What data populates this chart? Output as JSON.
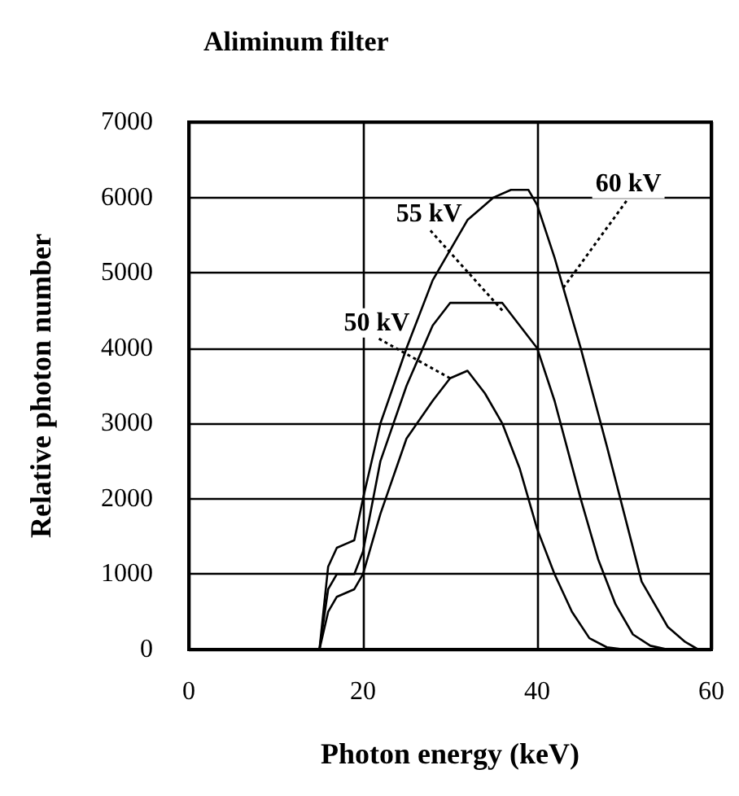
{
  "chart_data": {
    "type": "line",
    "title": "Aliminum filter",
    "xlabel": "Photon energy (keV)",
    "ylabel": "Relative photon number",
    "xlim": [
      0,
      60
    ],
    "xticks": [
      0,
      20,
      40,
      60
    ],
    "ylim": [
      0,
      7000
    ],
    "yticks": [
      0,
      1000,
      2000,
      3000,
      4000,
      5000,
      6000,
      7000
    ],
    "grid": true,
    "marker": "none",
    "line_style": "solid",
    "series": [
      {
        "color": "#000000",
        "x": [
          15,
          16,
          17,
          18,
          19,
          20,
          22,
          25,
          28,
          30,
          32,
          35,
          37,
          39,
          40,
          42,
          45,
          48,
          50,
          52,
          55,
          57,
          58.5
        ],
        "values": [
          0,
          1100,
          1350,
          1400,
          1450,
          2000,
          3000,
          4000,
          4900,
          5300,
          5700,
          6000,
          6100,
          6100,
          5900,
          5200,
          4000,
          2700,
          1800,
          900,
          300,
          100,
          0
        ]
      },
      {
        "color": "#000000",
        "x": [
          15,
          16,
          17,
          19,
          20,
          22,
          25,
          28,
          30,
          33,
          36,
          38,
          40,
          42,
          45,
          47,
          49,
          51,
          53,
          55
        ],
        "values": [
          0,
          800,
          1000,
          1000,
          1300,
          2500,
          3500,
          4300,
          4600,
          4600,
          4600,
          4300,
          4000,
          3300,
          2000,
          1200,
          600,
          200,
          50,
          0
        ]
      },
      {
        "color": "#000000",
        "x": [
          15,
          16,
          17,
          19,
          20,
          22,
          25,
          28,
          30,
          32,
          34,
          36,
          38,
          40,
          42,
          44,
          46,
          48,
          50
        ],
        "values": [
          0,
          500,
          700,
          800,
          1000,
          1800,
          2800,
          3300,
          3600,
          3700,
          3400,
          3000,
          2400,
          1600,
          1000,
          500,
          150,
          30,
          0
        ]
      }
    ],
    "annotations": [
      {
        "text": "60 kV",
        "x": 43,
        "y": 4800
      },
      {
        "text": "55 kV",
        "x": 36,
        "y": 4500
      },
      {
        "text": "50 kV",
        "x": 30,
        "y": 3600
      }
    ]
  }
}
